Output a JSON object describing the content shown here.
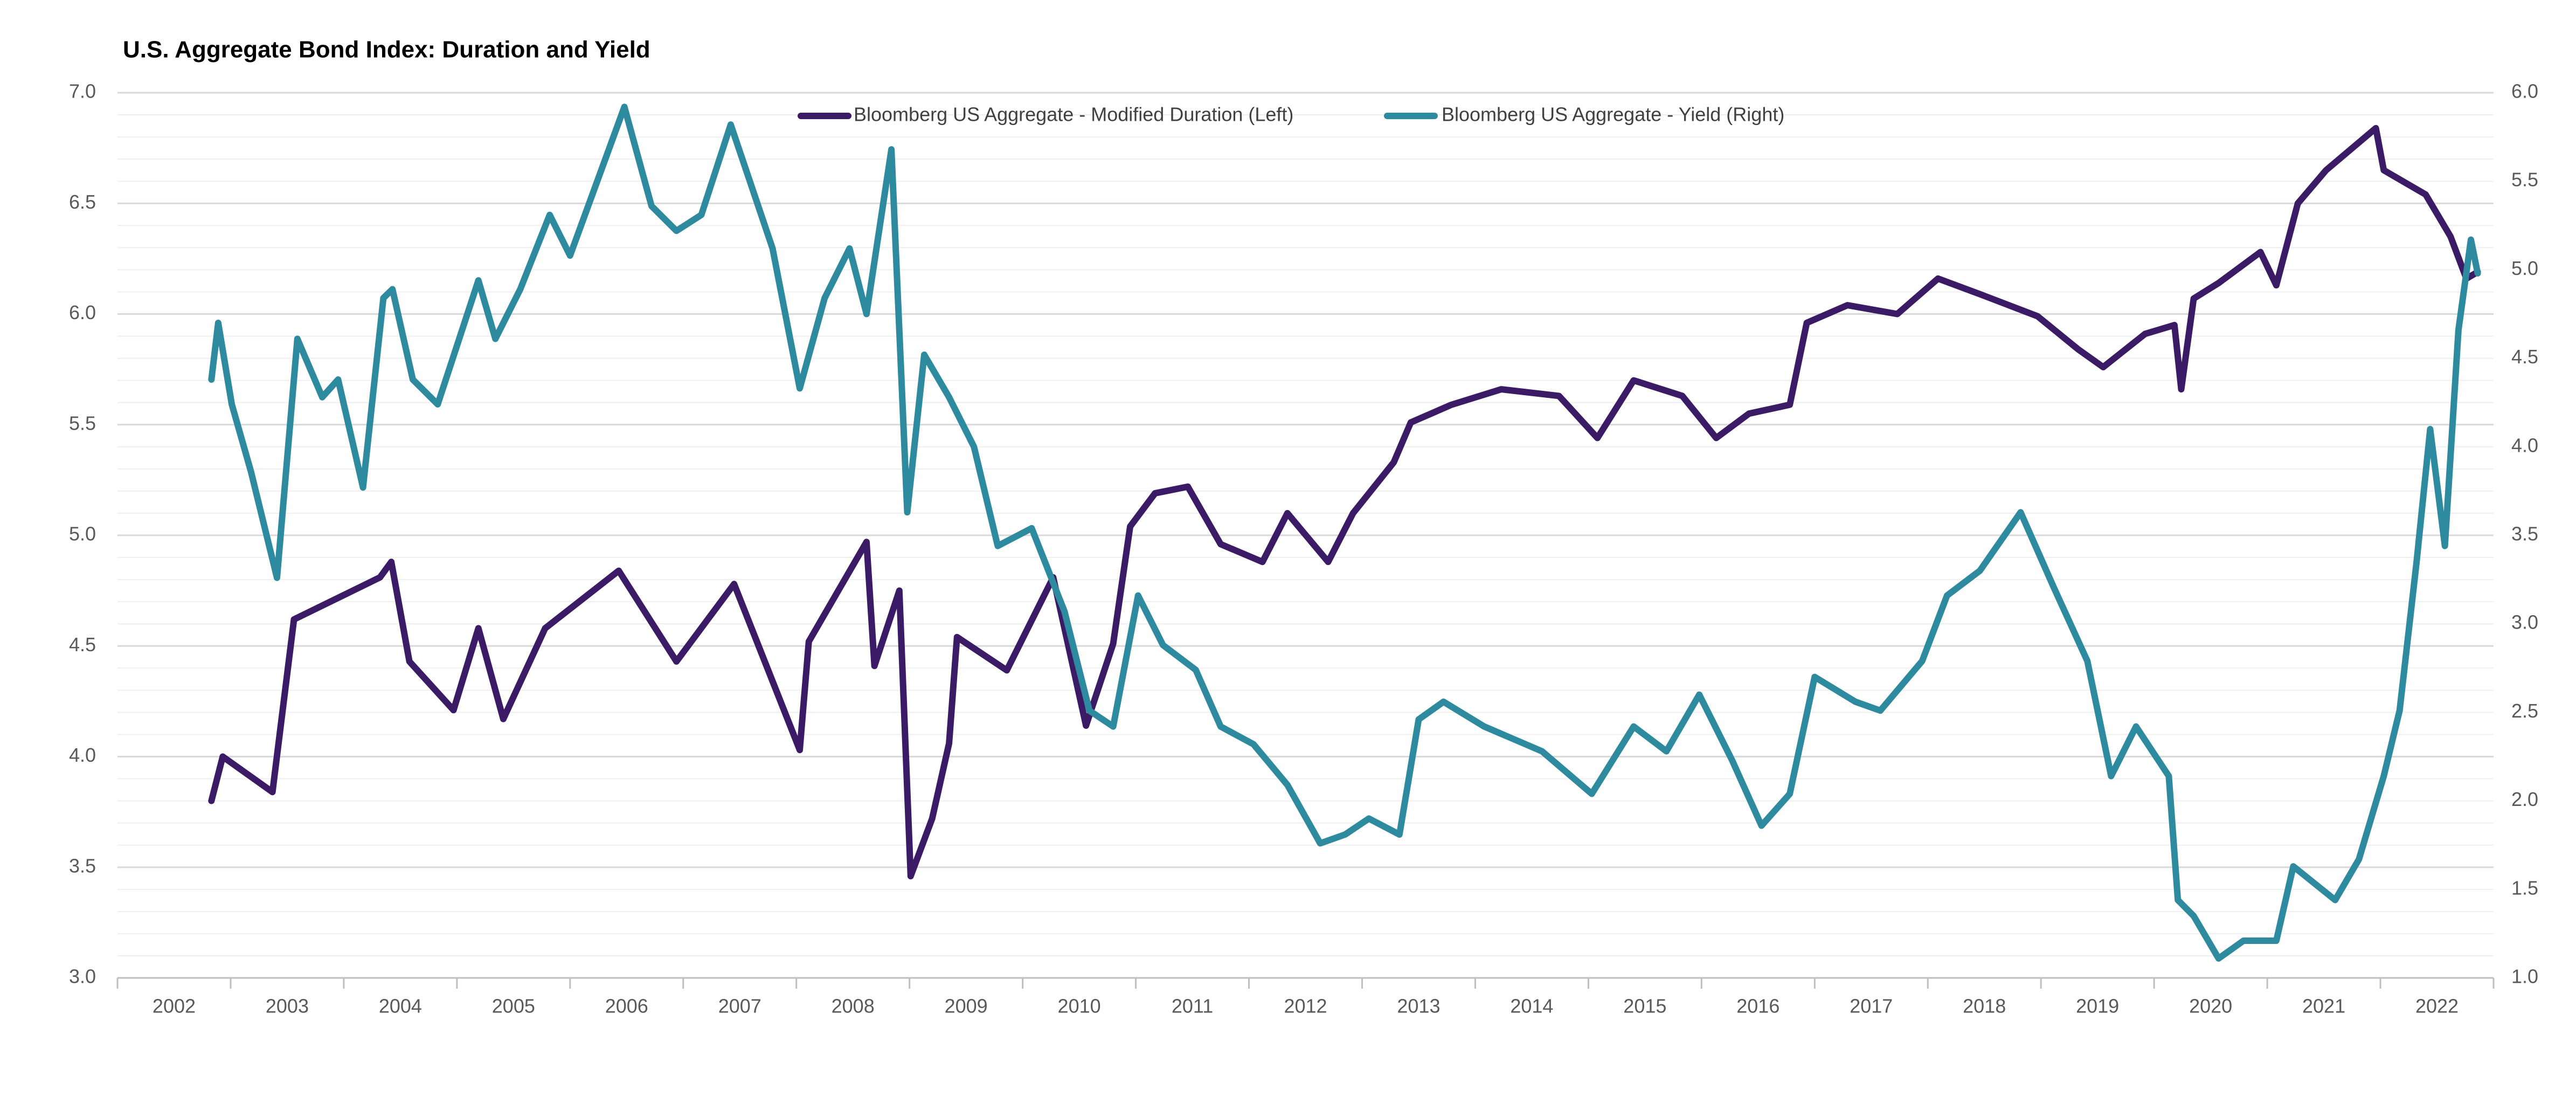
{
  "chart_data": {
    "type": "line",
    "title": "U.S. Aggregate Bond Index: Duration and Yield",
    "xlim": [
      2002,
      2023
    ],
    "xticks": [
      2002,
      2003,
      2004,
      2005,
      2006,
      2007,
      2008,
      2009,
      2010,
      2011,
      2012,
      2013,
      2014,
      2015,
      2016,
      2017,
      2018,
      2019,
      2020,
      2021,
      2022
    ],
    "ylim": [
      3,
      7
    ],
    "yticks": [
      {
        "value": 3,
        "label": "3.0"
      },
      {
        "value": 3.5,
        "label": "3.5"
      },
      {
        "value": 4,
        "label": "4.0"
      },
      {
        "value": 4.5,
        "label": "4.5"
      },
      {
        "value": 5,
        "label": "5.0"
      },
      {
        "value": 5.5,
        "label": "5.5"
      },
      {
        "value": 6,
        "label": "6.0"
      },
      {
        "value": 6.5,
        "label": "6.5"
      },
      {
        "value": 7,
        "label": "7.0"
      }
    ],
    "y2lim": [
      1,
      6
    ],
    "y2ticks": [
      {
        "value": 1,
        "label": "1.0"
      },
      {
        "value": 1.5,
        "label": "1.5"
      },
      {
        "value": 2,
        "label": "2.0"
      },
      {
        "value": 2.5,
        "label": "2.5"
      },
      {
        "value": 3,
        "label": "3.0"
      },
      {
        "value": 3.5,
        "label": "3.5"
      },
      {
        "value": 4,
        "label": "4.0"
      },
      {
        "value": 4.5,
        "label": "4.5"
      },
      {
        "value": 5,
        "label": "5.0"
      },
      {
        "value": 5.5,
        "label": "5.5"
      },
      {
        "value": 6,
        "label": "6.0"
      }
    ],
    "grid": true,
    "legend": "top",
    "series": [
      {
        "name": "Bloomberg US Aggregate - Modified Duration (Left)",
        "color": "#3b1a66",
        "axis": "y",
        "x": [
          2002.83,
          2002.93,
          2003.37,
          2003.56,
          2004.32,
          2004.42,
          2004.58,
          2004.97,
          2005.19,
          2005.41,
          2005.78,
          2006.43,
          2006.94,
          2007.45,
          2008.03,
          2008.11,
          2008.62,
          2008.69,
          2008.91,
          2009.01,
          2009.2,
          2009.35,
          2009.42,
          2009.86,
          2010.27,
          2010.56,
          2010.8,
          2010.95,
          2011.17,
          2011.46,
          2011.75,
          2012.12,
          2012.34,
          2012.7,
          2012.92,
          2013.28,
          2013.43,
          2013.79,
          2014.23,
          2014.74,
          2015.08,
          2015.4,
          2015.83,
          2016.13,
          2016.42,
          2016.78,
          2016.93,
          2017.29,
          2017.73,
          2018.09,
          2018.46,
          2018.97,
          2019.33,
          2019.55,
          2019.92,
          2020.18,
          2020.24,
          2020.35,
          2020.57,
          2020.94,
          2021.08,
          2021.27,
          2021.52,
          2021.96,
          2022.03,
          2022.4,
          2022.62,
          2022.76,
          2022.86
        ],
        "values": [
          3.8,
          4.0,
          3.84,
          4.62,
          4.81,
          4.88,
          4.43,
          4.21,
          4.58,
          4.17,
          4.58,
          4.84,
          4.43,
          4.78,
          4.03,
          4.52,
          4.97,
          4.41,
          4.75,
          3.46,
          3.72,
          4.06,
          4.54,
          4.39,
          4.81,
          4.14,
          4.51,
          5.04,
          5.19,
          5.22,
          4.96,
          4.88,
          5.1,
          4.88,
          5.1,
          5.33,
          5.51,
          5.59,
          5.66,
          5.63,
          5.44,
          5.7,
          5.63,
          5.44,
          5.55,
          5.59,
          5.96,
          6.04,
          6.0,
          6.16,
          6.09,
          5.99,
          5.84,
          5.76,
          5.91,
          5.95,
          5.66,
          6.07,
          6.14,
          6.28,
          6.13,
          6.5,
          6.65,
          6.84,
          6.65,
          6.54,
          6.35,
          6.16,
          6.19
        ]
      },
      {
        "name": "Bloomberg US Aggregate - Yield (Right)",
        "color": "#2e8a9e",
        "axis": "y2",
        "x": [
          2002.83,
          2002.89,
          2003.01,
          2003.18,
          2003.41,
          2003.59,
          2003.81,
          2003.95,
          2004.17,
          2004.35,
          2004.43,
          2004.61,
          2004.83,
          2005.19,
          2005.34,
          2005.56,
          2005.82,
          2006.0,
          2006.48,
          2006.72,
          2006.94,
          2007.16,
          2007.42,
          2007.79,
          2008.03,
          2008.25,
          2008.47,
          2008.62,
          2008.84,
          2008.98,
          2009.13,
          2009.35,
          2009.57,
          2009.78,
          2010.08,
          2010.37,
          2010.59,
          2010.8,
          2011.02,
          2011.24,
          2011.53,
          2011.75,
          2012.04,
          2012.34,
          2012.63,
          2012.85,
          2013.06,
          2013.33,
          2013.5,
          2013.72,
          2014.08,
          2014.59,
          2015.03,
          2015.4,
          2015.69,
          2015.98,
          2016.27,
          2016.53,
          2016.78,
          2017.0,
          2017.36,
          2017.58,
          2017.95,
          2018.17,
          2018.46,
          2018.82,
          2019.11,
          2019.41,
          2019.62,
          2019.84,
          2020.13,
          2020.21,
          2020.35,
          2020.57,
          2020.79,
          2021.08,
          2021.23,
          2021.6,
          2021.81,
          2022.03,
          2022.17,
          2022.32,
          2022.44,
          2022.57,
          2022.69,
          2022.8,
          2022.86
        ],
        "values": [
          4.38,
          4.7,
          4.24,
          3.86,
          3.26,
          4.61,
          4.28,
          4.38,
          3.77,
          4.84,
          4.89,
          4.38,
          4.24,
          4.94,
          4.61,
          4.89,
          5.31,
          5.08,
          5.92,
          5.36,
          5.22,
          5.31,
          5.82,
          5.12,
          4.33,
          4.84,
          5.12,
          4.75,
          5.68,
          3.63,
          4.52,
          4.28,
          4.0,
          3.44,
          3.54,
          3.07,
          2.51,
          2.42,
          3.16,
          2.88,
          2.74,
          2.42,
          2.32,
          2.09,
          1.76,
          1.81,
          1.9,
          1.81,
          2.46,
          2.56,
          2.42,
          2.28,
          2.04,
          2.42,
          2.28,
          2.6,
          2.23,
          1.86,
          2.04,
          2.7,
          2.56,
          2.51,
          2.79,
          3.16,
          3.3,
          3.63,
          3.21,
          2.79,
          2.14,
          2.42,
          2.14,
          1.44,
          1.35,
          1.11,
          1.21,
          1.21,
          1.63,
          1.44,
          1.67,
          2.14,
          2.51,
          3.35,
          4.1,
          3.44,
          4.66,
          5.17,
          4.98
        ]
      }
    ]
  }
}
